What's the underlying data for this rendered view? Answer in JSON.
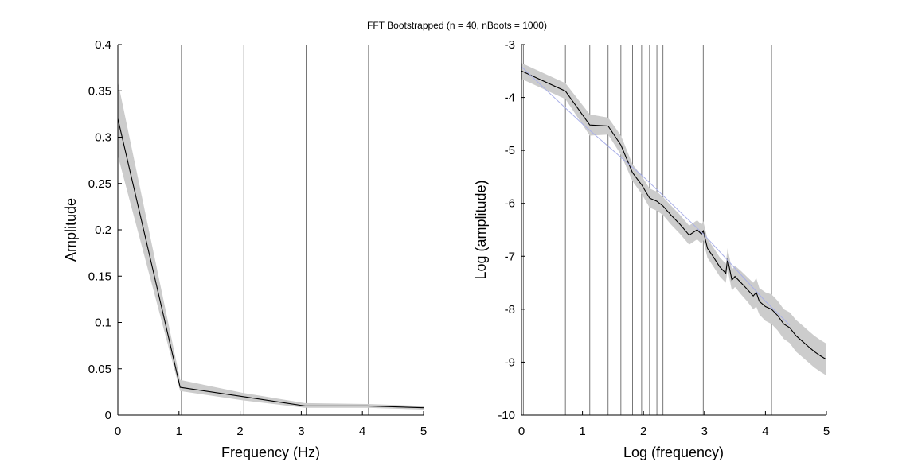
{
  "suptitle": "FFT Bootstrapped (n = 40, nBoots = 1000)",
  "chart_data": [
    {
      "type": "line",
      "xlabel": "Frequency (Hz)",
      "ylabel": "Amplitude",
      "xlim": [
        0,
        5
      ],
      "ylim": [
        0,
        0.4
      ],
      "xticks": [
        "0",
        "1",
        "2",
        "3",
        "4",
        "5"
      ],
      "yticks": [
        "0",
        "0.05",
        "0.1",
        "0.15",
        "0.2",
        "0.25",
        "0.3",
        "0.35",
        "0.4"
      ],
      "vlines": [
        1.04,
        2.06,
        3.08,
        4.1
      ],
      "series": [
        {
          "x": [
            0,
            1.02,
            2.04,
            3.06,
            4.08,
            5.0
          ],
          "y": [
            0.32,
            0.03,
            0.02,
            0.01,
            0.01,
            0.008
          ],
          "ci_low": [
            0.28,
            0.026,
            0.016,
            0.008,
            0.008,
            0.006
          ],
          "ci_high": [
            0.36,
            0.038,
            0.024,
            0.013,
            0.012,
            0.01
          ],
          "color": "#000000",
          "ci_color": "#cccccc"
        }
      ]
    },
    {
      "type": "line",
      "xlabel": "Log (frequency)",
      "ylabel": "Log (amplitude)",
      "xlim": [
        0,
        5
      ],
      "ylim": [
        -10,
        -3
      ],
      "xticks": [
        "0",
        "1",
        "2",
        "3",
        "4",
        "5"
      ],
      "yticks": [
        "-10",
        "-9",
        "-8",
        "-7",
        "-6",
        "-5",
        "-4",
        "-3"
      ],
      "vlines": [
        0.03,
        0.72,
        1.12,
        1.42,
        1.63,
        1.82,
        1.97,
        2.1,
        2.22,
        2.32,
        2.98,
        4.1
      ],
      "series": [
        {
          "x": [
            0.0,
            0.72,
            1.12,
            1.42,
            1.63,
            1.82,
            1.97,
            2.1,
            2.22,
            2.32,
            2.45,
            2.6,
            2.75,
            2.88,
            2.95,
            2.98,
            3.05,
            3.15,
            3.25,
            3.35,
            3.38,
            3.45,
            3.5,
            3.6,
            3.7,
            3.8,
            3.85,
            3.9,
            4.0,
            4.1,
            4.2,
            4.3,
            4.4,
            4.5,
            4.6,
            4.7,
            4.8,
            4.9,
            5.0
          ],
          "y": [
            -3.5,
            -3.88,
            -4.52,
            -4.54,
            -4.9,
            -5.42,
            -5.65,
            -5.9,
            -5.96,
            -6.05,
            -6.22,
            -6.4,
            -6.6,
            -6.5,
            -6.58,
            -6.52,
            -6.85,
            -7.02,
            -7.2,
            -7.32,
            -7.05,
            -7.45,
            -7.38,
            -7.5,
            -7.62,
            -7.75,
            -7.68,
            -7.85,
            -7.95,
            -8.0,
            -8.12,
            -8.28,
            -8.35,
            -8.5,
            -8.6,
            -8.7,
            -8.8,
            -8.88,
            -8.95
          ],
          "ci_low": [
            -3.65,
            -4.03,
            -4.72,
            -4.7,
            -5.08,
            -5.58,
            -5.82,
            -6.08,
            -6.14,
            -6.22,
            -6.4,
            -6.58,
            -6.78,
            -6.68,
            -6.76,
            -6.7,
            -7.03,
            -7.2,
            -7.38,
            -7.5,
            -7.25,
            -7.65,
            -7.58,
            -7.72,
            -7.85,
            -8.0,
            -7.95,
            -8.1,
            -8.22,
            -8.28,
            -8.4,
            -8.56,
            -8.64,
            -8.8,
            -8.9,
            -9.0,
            -9.1,
            -9.18,
            -9.25
          ],
          "ci_high": [
            -3.35,
            -3.73,
            -4.32,
            -4.38,
            -4.72,
            -5.26,
            -5.48,
            -5.72,
            -5.78,
            -5.88,
            -6.04,
            -6.22,
            -6.42,
            -6.32,
            -6.4,
            -6.34,
            -6.67,
            -6.84,
            -7.02,
            -7.14,
            -6.85,
            -7.25,
            -7.18,
            -7.28,
            -7.39,
            -7.5,
            -7.41,
            -7.6,
            -7.68,
            -7.72,
            -7.84,
            -8.0,
            -8.06,
            -8.2,
            -8.3,
            -8.4,
            -8.5,
            -8.58,
            -8.65
          ],
          "color": "#000000",
          "ci_color": "#cccccc"
        },
        {
          "x": [
            0.0,
            1.0,
            2.0,
            3.0,
            4.0,
            4.4
          ],
          "y": [
            -3.42,
            -4.5,
            -5.5,
            -6.6,
            -7.85,
            -8.3
          ],
          "color": "#aab0e8"
        }
      ]
    }
  ]
}
